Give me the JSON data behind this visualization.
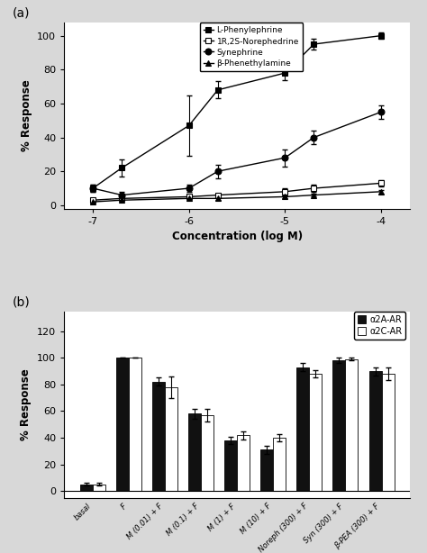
{
  "panel_a": {
    "label": "(a)",
    "xlabel": "Concentration (log M)",
    "ylabel": "% Response",
    "xlim": [
      -7.3,
      -3.7
    ],
    "ylim": [
      -2,
      108
    ],
    "xticks": [
      -7,
      -6,
      -5,
      -4
    ],
    "xticklabels": [
      "-7",
      "-6",
      "-5",
      "-4"
    ],
    "yticks": [
      0,
      20,
      40,
      60,
      80,
      100
    ],
    "series": {
      "L-Phenylephrine": {
        "x": [
          -7,
          -6.7,
          -6,
          -5.7,
          -5,
          -4.7,
          -4
        ],
        "y": [
          10,
          22,
          47,
          68,
          78,
          95,
          100
        ],
        "yerr": [
          2,
          5,
          18,
          5,
          4,
          3,
          2
        ],
        "marker": "s",
        "fillstyle": "full"
      },
      "1R,2S-Norephedrine": {
        "x": [
          -7,
          -6.7,
          -6,
          -5.7,
          -5,
          -4.7,
          -4
        ],
        "y": [
          3,
          4,
          5,
          6,
          8,
          10,
          13
        ],
        "yerr": [
          1,
          1,
          1,
          1,
          2,
          2,
          2
        ],
        "marker": "s",
        "fillstyle": "none"
      },
      "Synephrine": {
        "x": [
          -7,
          -6.7,
          -6,
          -5.7,
          -5,
          -4.7,
          -4
        ],
        "y": [
          10,
          6,
          10,
          20,
          28,
          40,
          55
        ],
        "yerr": [
          2,
          2,
          2,
          4,
          5,
          4,
          4
        ],
        "marker": "o",
        "fillstyle": "full"
      },
      "b-Phenethylamine": {
        "x": [
          -7,
          -6.7,
          -6,
          -5.7,
          -5,
          -4.7,
          -4
        ],
        "y": [
          2,
          3,
          4,
          4,
          5,
          6,
          8
        ],
        "yerr": [
          1,
          1,
          1,
          1,
          1,
          1,
          1
        ],
        "marker": "^",
        "fillstyle": "full"
      }
    },
    "legend_labels": [
      "L-Phenylephrine",
      "1R,2S-Norephedrine",
      "Synephrine",
      "β-Phenethylamine"
    ],
    "legend_markers": [
      "s",
      "s",
      "o",
      "^"
    ],
    "legend_fillstyles": [
      "full",
      "none",
      "full",
      "full"
    ]
  },
  "panel_b": {
    "label": "(b)",
    "ylabel": "% Response",
    "ylim": [
      -5,
      135
    ],
    "yticks": [
      0,
      20,
      40,
      60,
      80,
      100,
      120
    ],
    "yticklabels": [
      "0",
      "20",
      "40",
      "60",
      "80",
      "100",
      "120"
    ],
    "categories": [
      "basal",
      "F",
      "M (0.01) + F",
      "M (0.1) + F",
      "M (1) + F",
      "M (10) + F",
      "Noreph (300) + F",
      "Syn (300) + F",
      "β-PEA (300) + F"
    ],
    "a2A_values": [
      5,
      100,
      82,
      58,
      38,
      31,
      93,
      98,
      90
    ],
    "a2A_errors": [
      1,
      0,
      3,
      4,
      3,
      3,
      3,
      2,
      3
    ],
    "a2C_values": [
      5,
      100,
      78,
      57,
      42,
      40,
      88,
      99,
      88
    ],
    "a2C_errors": [
      1,
      0,
      8,
      5,
      3,
      3,
      3,
      1,
      5
    ],
    "bar_width": 0.35,
    "color_a2A": "#111111",
    "color_a2C": "#ffffff",
    "legend_labels": [
      "α2A-AR",
      "α2C-AR"
    ]
  },
  "bg_color": "#d8d8d8",
  "plot_bg_color": "#ffffff",
  "fig_width": 4.74,
  "fig_height": 6.14,
  "dpi": 100
}
